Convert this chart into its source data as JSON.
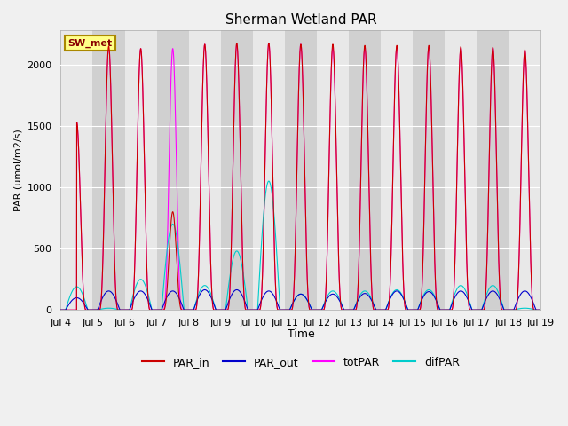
{
  "title": "Sherman Wetland PAR",
  "ylabel": "PAR (umol/m2/s)",
  "xlabel": "Time",
  "station_label": "SW_met",
  "ylim": [
    0,
    2280
  ],
  "xlim_start": 4.0,
  "xlim_end": 19.0,
  "xtick_positions": [
    4,
    5,
    6,
    7,
    8,
    9,
    10,
    11,
    12,
    13,
    14,
    15,
    16,
    17,
    18,
    19
  ],
  "xtick_labels": [
    "Jul 4",
    "Jul 5",
    "Jul 6",
    "Jul 7",
    "Jul 8",
    "Jul 9",
    "Jul 10",
    "Jul 11",
    "Jul 12",
    "Jul 13",
    "Jul 14",
    "Jul 15",
    "Jul 16",
    "Jul 17",
    "Jul 18",
    "Jul 19"
  ],
  "background_color": "#f0f0f0",
  "axes_bg_color": "#e0e0e0",
  "band_light": "#e8e8e8",
  "band_dark": "#d0d0d0",
  "grid_color": "#ffffff",
  "line_colors": {
    "PAR_in": "#cc0000",
    "PAR_out": "#0000cc",
    "totPAR": "#ff00ff",
    "difPAR": "#00cccc"
  },
  "day_peaks": [
    {
      "day": 4,
      "PAR_in": 1530,
      "totPAR": 1530,
      "difPAR": 190,
      "PAR_out": 100,
      "partial": true
    },
    {
      "day": 5,
      "PAR_in": 2150,
      "totPAR": 2150,
      "difPAR": 15,
      "PAR_out": 155
    },
    {
      "day": 6,
      "PAR_in": 2130,
      "totPAR": 2130,
      "difPAR": 250,
      "PAR_out": 155
    },
    {
      "day": 7,
      "PAR_in": 800,
      "totPAR": 2130,
      "difPAR": 700,
      "PAR_out": 155
    },
    {
      "day": 8,
      "PAR_in": 2165,
      "totPAR": 2165,
      "difPAR": 200,
      "PAR_out": 165
    },
    {
      "day": 9,
      "PAR_in": 2175,
      "totPAR": 2165,
      "difPAR": 480,
      "PAR_out": 165
    },
    {
      "day": 10,
      "PAR_in": 2175,
      "totPAR": 2175,
      "difPAR": 1050,
      "PAR_out": 155
    },
    {
      "day": 11,
      "PAR_in": 2165,
      "totPAR": 2165,
      "difPAR": 130,
      "PAR_out": 130
    },
    {
      "day": 12,
      "PAR_in": 2165,
      "totPAR": 2135,
      "difPAR": 155,
      "PAR_out": 130
    },
    {
      "day": 13,
      "PAR_in": 2155,
      "totPAR": 2135,
      "difPAR": 155,
      "PAR_out": 135
    },
    {
      "day": 14,
      "PAR_in": 2155,
      "totPAR": 2145,
      "difPAR": 165,
      "PAR_out": 155
    },
    {
      "day": 15,
      "PAR_in": 2155,
      "totPAR": 2145,
      "difPAR": 165,
      "PAR_out": 150
    },
    {
      "day": 16,
      "PAR_in": 2145,
      "totPAR": 2135,
      "difPAR": 200,
      "PAR_out": 155
    },
    {
      "day": 17,
      "PAR_in": 2140,
      "totPAR": 2135,
      "difPAR": 200,
      "PAR_out": 155
    },
    {
      "day": 18,
      "PAR_in": 2120,
      "totPAR": 2115,
      "difPAR": 15,
      "PAR_out": 155
    }
  ]
}
